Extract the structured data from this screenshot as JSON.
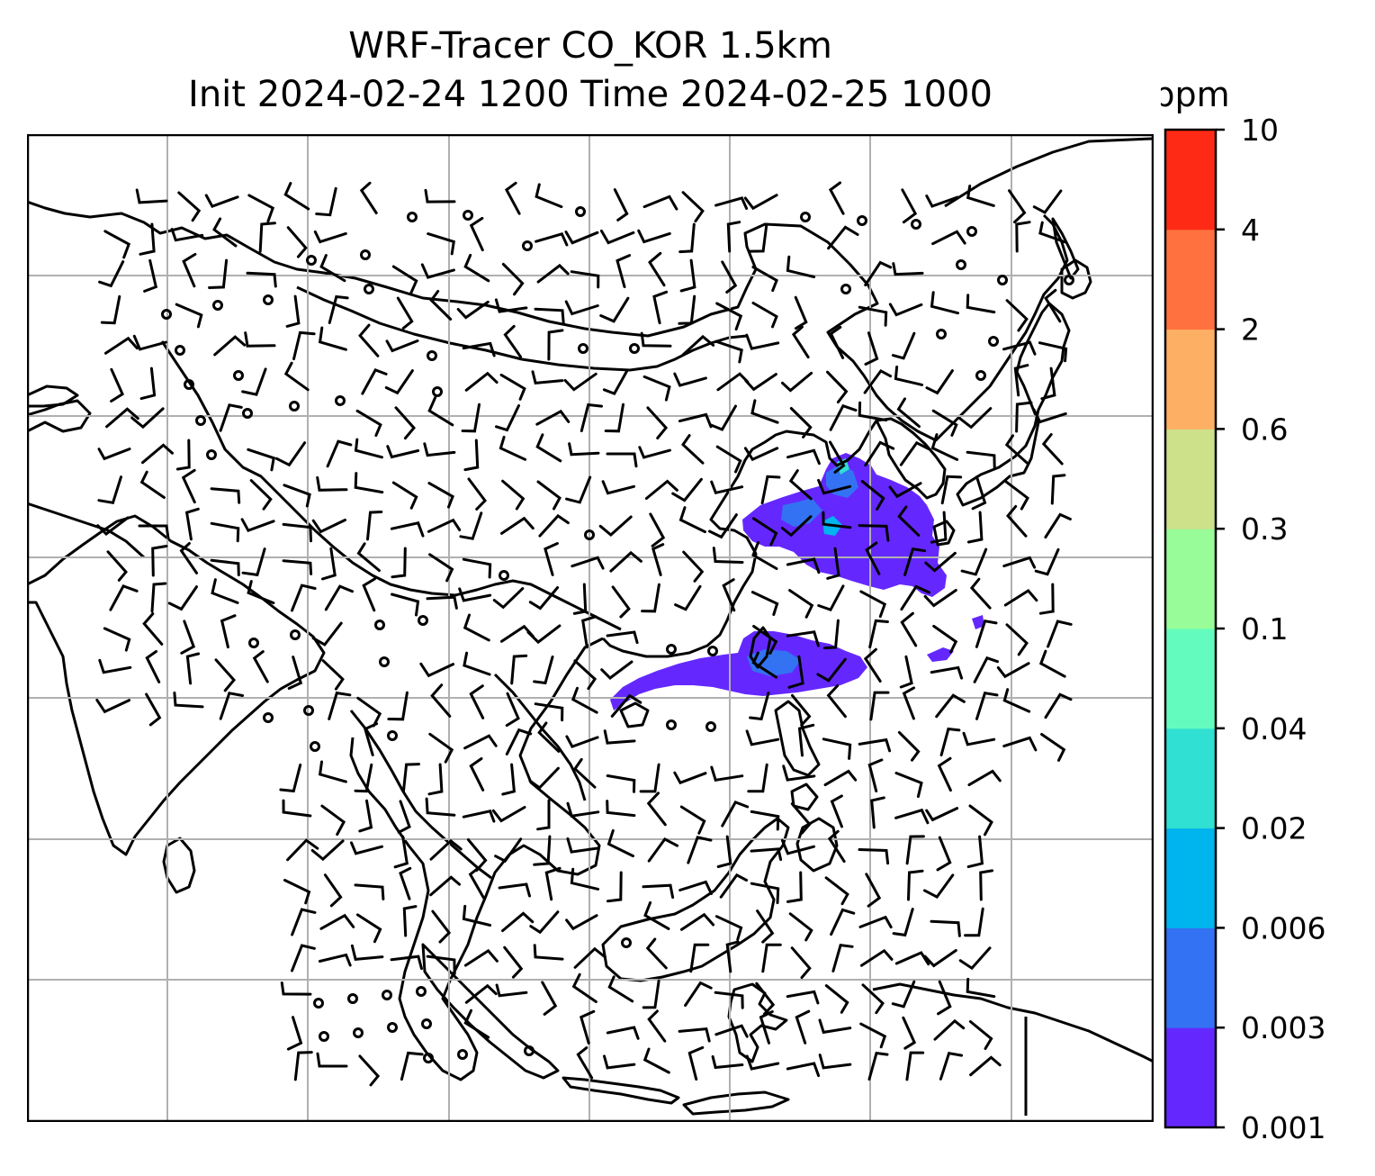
{
  "title": {
    "line1": "WRF-Tracer CO_KOR 1.5km",
    "line2": "Init 2024-02-24 1200 Time 2024-02-25 1000"
  },
  "map": {
    "background": "#ffffff",
    "coastline_color": "#000000",
    "gridline_color": "#b0b0b0",
    "wind_barb_color": "#000000",
    "tracer_main_color": "#6428ff"
  },
  "colorbar": {
    "unit": "ppm",
    "ticks": [
      "0.001",
      "0.003",
      "0.006",
      "0.02",
      "0.04",
      "0.1",
      "0.3",
      "0.6",
      "2",
      "4",
      "10"
    ],
    "colors": [
      "#6428ff",
      "#3372f2",
      "#00b4ee",
      "#30e0d2",
      "#64fcbe",
      "#98fc98",
      "#cde08a",
      "#fdb064",
      "#ff7240",
      "#ff2a15"
    ]
  }
}
